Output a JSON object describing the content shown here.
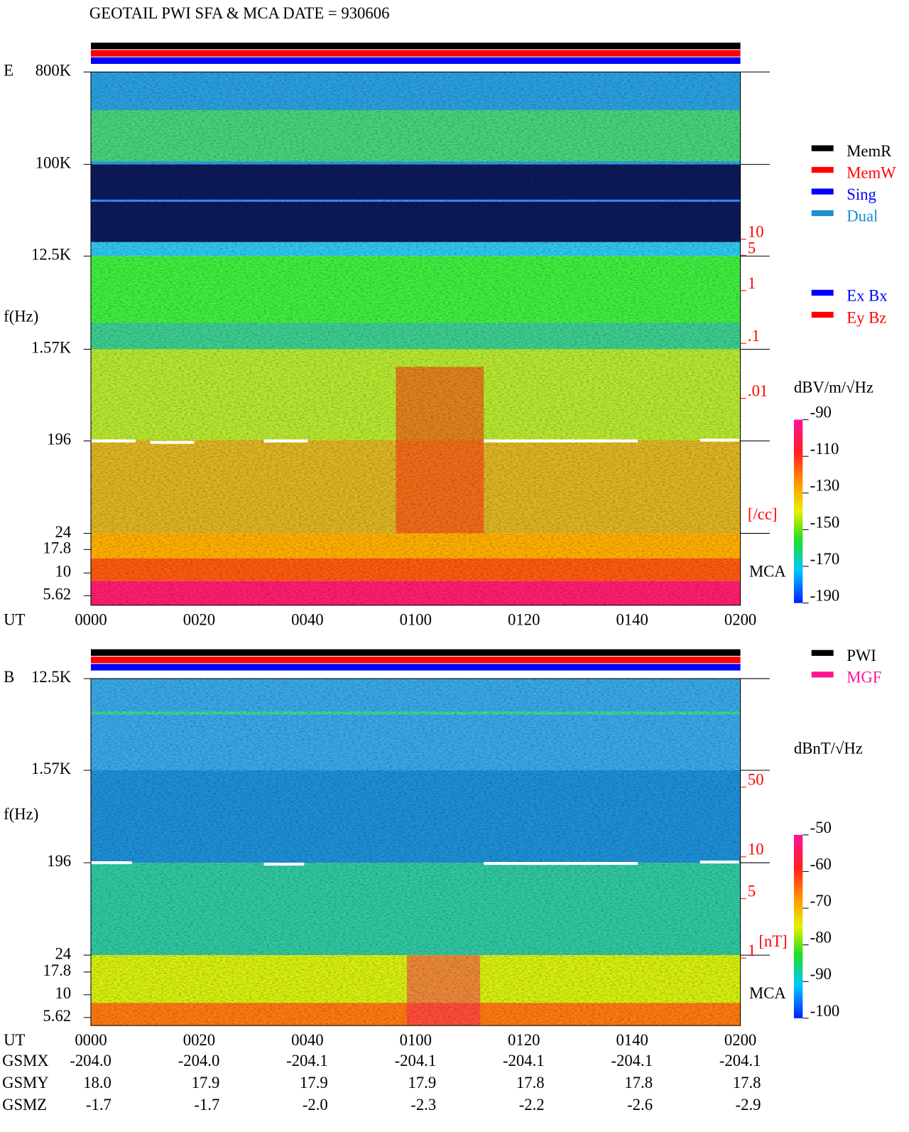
{
  "title": "GEOTAIL   PWI SFA & MCA   DATE = 930606",
  "panels": [
    {
      "label": "E",
      "y_label": "f(Hz)",
      "y_ticks": [
        "800K",
        "100K",
        "12.5K",
        "1.57K",
        "196",
        "24",
        "17.8",
        "10",
        "5.62"
      ],
      "x_label": "UT",
      "x_ticks": [
        "0000",
        "0020",
        "0040",
        "0100",
        "0120",
        "0140",
        "0200"
      ],
      "right_ticks": [
        "10",
        "5",
        "1",
        ".1",
        ".01"
      ],
      "right_unit": "[/cc]",
      "mca": "MCA",
      "legend": [
        {
          "name": "MemR",
          "color": "#000000"
        },
        {
          "name": "MemW",
          "color": "#ff0000"
        },
        {
          "name": "Sing",
          "color": "#0000ff"
        },
        {
          "name": "Dual",
          "color": "#1e8fd0"
        }
      ],
      "legend2": [
        {
          "name": "Ex Bx",
          "color": "#0000ff"
        },
        {
          "name": "Ey Bz",
          "color": "#ff0000"
        }
      ],
      "colorbar": {
        "label": "dBV/m/√Hz",
        "ticks": [
          -90,
          -110,
          -130,
          -150,
          -170,
          -190
        ]
      }
    },
    {
      "label": "B",
      "y_label": "f(Hz)",
      "y_ticks": [
        "12.5K",
        "1.57K",
        "196",
        "24",
        "17.8",
        "10",
        "5.62"
      ],
      "x_label": "UT",
      "x_ticks": [
        "0000",
        "0020",
        "0040",
        "0100",
        "0120",
        "0140",
        "0200"
      ],
      "right_ticks": [
        "50",
        "10",
        "5",
        "1"
      ],
      "right_unit": "[nT]",
      "mca": "MCA",
      "legend": [
        {
          "name": "PWI",
          "color": "#000000"
        },
        {
          "name": "MGF",
          "color": "#ff1493"
        }
      ],
      "colorbar": {
        "label": "dBnT/√Hz",
        "ticks": [
          -50,
          -60,
          -70,
          -80,
          -90,
          -100
        ]
      }
    }
  ],
  "orbit": [
    {
      "label": "GSMX",
      "values": [
        "-204.0",
        "-204.0",
        "-204.1",
        "-204.1",
        "-204.1",
        "-204.1",
        "-204.1"
      ]
    },
    {
      "label": "GSMY",
      "values": [
        "18.0",
        "17.9",
        "17.9",
        "17.9",
        "17.8",
        "17.8",
        "17.8"
      ]
    },
    {
      "label": "GSMZ",
      "values": [
        "-1.7",
        "-1.7",
        "-2.0",
        "-2.3",
        "-2.2",
        "-2.6",
        "-2.9"
      ]
    }
  ]
}
